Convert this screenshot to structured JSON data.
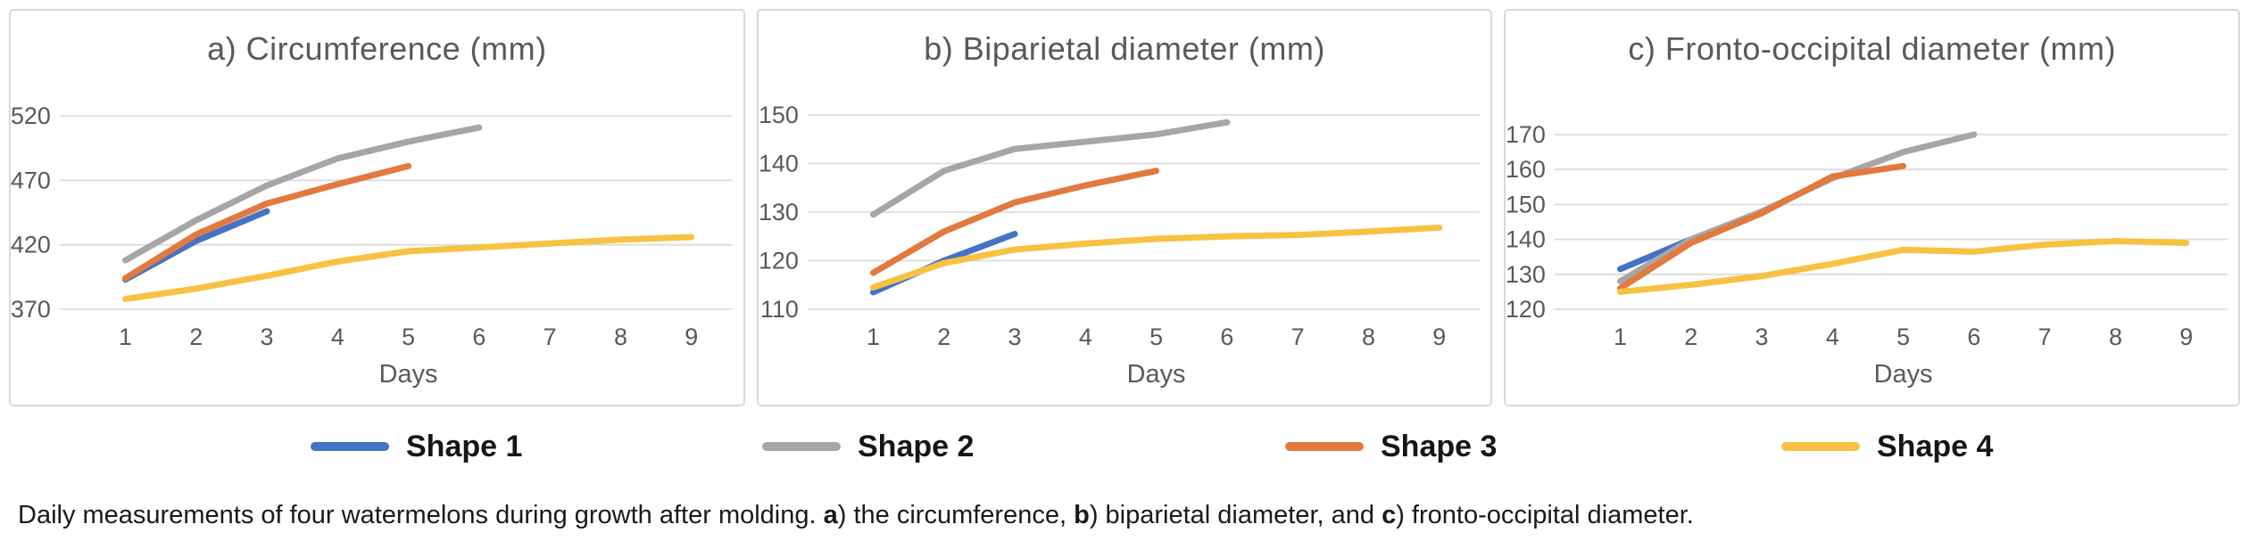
{
  "legend": {
    "items": [
      {
        "label": "Shape 1",
        "color": "#4472C4"
      },
      {
        "label": "Shape 2",
        "color": "#A6A6A6"
      },
      {
        "label": "Shape 3",
        "color": "#E2793E"
      },
      {
        "label": "Shape 4",
        "color": "#F7C242"
      }
    ]
  },
  "caption": {
    "parts": [
      {
        "text": "Daily measurements of four watermelons during growth after molding. ",
        "bold": false
      },
      {
        "text": "a",
        "bold": true
      },
      {
        "text": ") the circumference, ",
        "bold": false
      },
      {
        "text": "b",
        "bold": true
      },
      {
        "text": ") biparietal diameter, and ",
        "bold": false
      },
      {
        "text": "c",
        "bold": true
      },
      {
        "text": ") fronto-occipital diameter.",
        "bold": false
      }
    ]
  },
  "chart_data": [
    {
      "type": "line",
      "title": "a) Circumference (mm)",
      "xlabel": "Days",
      "x": [
        1,
        2,
        3,
        4,
        5,
        6,
        7,
        8,
        9
      ],
      "xticklabels": [
        "1",
        "2",
        "3",
        "4",
        "5",
        "6",
        "7",
        "8",
        "9"
      ],
      "ylim": [
        370,
        520
      ],
      "yticks": [
        370,
        420,
        470,
        520
      ],
      "grid": "horizontal",
      "legend_position": "bottom-shared",
      "series": [
        {
          "name": "Shape 1",
          "color": "#4472C4",
          "values": [
            393,
            423,
            446
          ]
        },
        {
          "name": "Shape 2",
          "color": "#A6A6A6",
          "values": [
            408,
            439,
            466,
            487,
            500,
            511
          ]
        },
        {
          "name": "Shape 3",
          "color": "#E2793E",
          "values": [
            394,
            428,
            452,
            467,
            481
          ]
        },
        {
          "name": "Shape 4",
          "color": "#F7C242",
          "values": [
            378,
            386,
            396,
            407,
            415,
            418,
            421,
            424,
            426
          ]
        }
      ]
    },
    {
      "type": "line",
      "title": "b) Biparietal diameter (mm)",
      "xlabel": "Days",
      "x": [
        1,
        2,
        3,
        4,
        5,
        6,
        7,
        8,
        9
      ],
      "xticklabels": [
        "1",
        "2",
        "3",
        "4",
        "5",
        "6",
        "7",
        "8",
        "9"
      ],
      "ylim": [
        110,
        150
      ],
      "yticks": [
        110,
        120,
        130,
        140,
        150
      ],
      "grid": "horizontal",
      "legend_position": "bottom-shared",
      "series": [
        {
          "name": "Shape 1",
          "color": "#4472C4",
          "values": [
            113.5,
            120,
            125.5
          ]
        },
        {
          "name": "Shape 2",
          "color": "#A6A6A6",
          "values": [
            129.5,
            138.5,
            143,
            144.5,
            146,
            148.5
          ]
        },
        {
          "name": "Shape 3",
          "color": "#E2793E",
          "values": [
            117.5,
            126,
            132,
            135.5,
            138.5
          ]
        },
        {
          "name": "Shape 4",
          "color": "#F7C242",
          "values": [
            114.5,
            119.5,
            122.3,
            123.5,
            124.5,
            125,
            125.3,
            126,
            126.8
          ]
        }
      ]
    },
    {
      "type": "line",
      "title": "c) Fronto-occipital diameter (mm)",
      "xlabel": "Days",
      "x": [
        1,
        2,
        3,
        4,
        5,
        6,
        7,
        8,
        9
      ],
      "xticklabels": [
        "1",
        "2",
        "3",
        "4",
        "5",
        "6",
        "7",
        "8",
        "9"
      ],
      "ylim": [
        120,
        170
      ],
      "yticks": [
        120,
        130,
        140,
        150,
        160,
        170
      ],
      "grid": "horizontal",
      "legend_position": "bottom-shared",
      "series": [
        {
          "name": "Shape 1",
          "color": "#4472C4",
          "values": [
            131.5,
            140,
            147.5
          ]
        },
        {
          "name": "Shape 2",
          "color": "#A6A6A6",
          "values": [
            128,
            140,
            148,
            157.5,
            165,
            170
          ]
        },
        {
          "name": "Shape 3",
          "color": "#E2793E",
          "values": [
            126,
            139,
            147.5,
            158,
            161
          ]
        },
        {
          "name": "Shape 4",
          "color": "#F7C242",
          "values": [
            125,
            127,
            129.5,
            133,
            137,
            136.5,
            138.5,
            139.5,
            139
          ]
        }
      ]
    }
  ]
}
